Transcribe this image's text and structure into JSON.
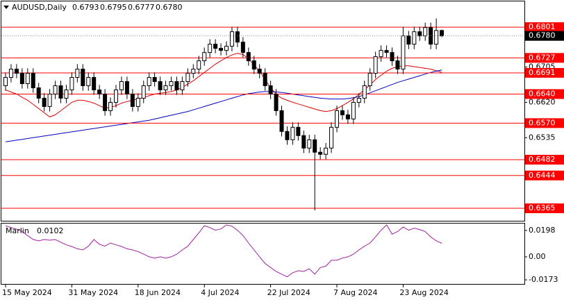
{
  "chart_data": [
    {
      "type": "candlestick",
      "symbol": "AUDUSD,Daily",
      "categories": [
        "15 May 2024",
        null,
        null,
        null,
        null,
        null,
        null,
        null,
        null,
        null,
        null,
        null,
        "31 May 2024",
        null,
        null,
        null,
        null,
        null,
        null,
        null,
        null,
        null,
        null,
        null,
        "18 Jun 2024",
        null,
        null,
        null,
        null,
        null,
        null,
        null,
        null,
        null,
        null,
        null,
        "4 Jul 2024",
        null,
        null,
        null,
        null,
        null,
        null,
        null,
        null,
        null,
        null,
        null,
        "22 Jul 2024",
        null,
        null,
        null,
        null,
        null,
        null,
        null,
        null,
        null,
        null,
        null,
        "7 Aug 2024",
        null,
        null,
        null,
        null,
        null,
        null,
        null,
        null,
        null,
        null,
        null,
        "23 Aug 2024",
        null,
        null,
        null,
        null,
        null,
        null,
        null
      ],
      "candles": [
        [
          0.666,
          0.6692,
          0.6648,
          0.668
        ],
        [
          0.668,
          0.6712,
          0.6668,
          0.67
        ],
        [
          0.67,
          0.6712,
          0.6678,
          0.669
        ],
        [
          0.669,
          0.6702,
          0.6653,
          0.6665
        ],
        [
          0.6665,
          0.6702,
          0.6653,
          0.669
        ],
        [
          0.669,
          0.6702,
          0.6643,
          0.6655
        ],
        [
          0.6655,
          0.6667,
          0.6618,
          0.663
        ],
        [
          0.663,
          0.6642,
          0.6598,
          0.661
        ],
        [
          0.661,
          0.6652,
          0.6598,
          0.664
        ],
        [
          0.664,
          0.6672,
          0.6628,
          0.666
        ],
        [
          0.666,
          0.6672,
          0.6618,
          0.663
        ],
        [
          0.663,
          0.6662,
          0.6618,
          0.665
        ],
        [
          0.665,
          0.6692,
          0.6638,
          0.668
        ],
        [
          0.668,
          0.6712,
          0.6668,
          0.67
        ],
        [
          0.67,
          0.6712,
          0.6648,
          0.666
        ],
        [
          0.666,
          0.6692,
          0.6648,
          0.668
        ],
        [
          0.668,
          0.6692,
          0.6638,
          0.665
        ],
        [
          0.665,
          0.6662,
          0.6628,
          0.664
        ],
        [
          0.664,
          0.6652,
          0.6588,
          0.66
        ],
        [
          0.66,
          0.6632,
          0.6588,
          0.662
        ],
        [
          0.662,
          0.6662,
          0.6608,
          0.665
        ],
        [
          0.665,
          0.6682,
          0.6638,
          0.667
        ],
        [
          0.667,
          0.6682,
          0.6628,
          0.664
        ],
        [
          0.664,
          0.6652,
          0.6598,
          0.661
        ],
        [
          0.661,
          0.6642,
          0.6598,
          0.663
        ],
        [
          0.663,
          0.6672,
          0.6618,
          0.666
        ],
        [
          0.666,
          0.6692,
          0.6648,
          0.668
        ],
        [
          0.668,
          0.6692,
          0.6658,
          0.667
        ],
        [
          0.667,
          0.6682,
          0.6638,
          0.665
        ],
        [
          0.665,
          0.6672,
          0.6638,
          0.666
        ],
        [
          0.666,
          0.6682,
          0.6648,
          0.667
        ],
        [
          0.667,
          0.6682,
          0.6638,
          0.665
        ],
        [
          0.665,
          0.6682,
          0.6638,
          0.667
        ],
        [
          0.667,
          0.6702,
          0.6658,
          0.669
        ],
        [
          0.669,
          0.6712,
          0.6678,
          0.67
        ],
        [
          0.67,
          0.6732,
          0.6688,
          0.672
        ],
        [
          0.672,
          0.6752,
          0.6708,
          0.674
        ],
        [
          0.674,
          0.6772,
          0.6728,
          0.676
        ],
        [
          0.676,
          0.6772,
          0.6738,
          0.675
        ],
        [
          0.675,
          0.6762,
          0.6733,
          0.6745
        ],
        [
          0.6745,
          0.6767,
          0.6733,
          0.6755
        ],
        [
          0.6755,
          0.6802,
          0.6743,
          0.679
        ],
        [
          0.679,
          0.6802,
          0.6753,
          0.6765
        ],
        [
          0.6765,
          0.6777,
          0.6728,
          0.674
        ],
        [
          0.674,
          0.6752,
          0.6708,
          0.672
        ],
        [
          0.672,
          0.6732,
          0.6688,
          0.67
        ],
        [
          0.67,
          0.6712,
          0.6678,
          0.669
        ],
        [
          0.669,
          0.6702,
          0.6648,
          0.666
        ],
        [
          0.666,
          0.6672,
          0.6628,
          0.664
        ],
        [
          0.664,
          0.6652,
          0.6588,
          0.66
        ],
        [
          0.66,
          0.6612,
          0.6538,
          0.655
        ],
        [
          0.655,
          0.6562,
          0.6518,
          0.653
        ],
        [
          0.653,
          0.6572,
          0.6518,
          0.656
        ],
        [
          0.656,
          0.6572,
          0.6528,
          0.654
        ],
        [
          0.654,
          0.6552,
          0.6498,
          0.651
        ],
        [
          0.651,
          0.6542,
          0.6498,
          0.653
        ],
        [
          0.653,
          0.6542,
          0.636,
          0.65
        ],
        [
          0.65,
          0.6512,
          0.6483,
          0.6495
        ],
        [
          0.6495,
          0.6522,
          0.6483,
          0.651
        ],
        [
          0.651,
          0.6572,
          0.6498,
          0.656
        ],
        [
          0.656,
          0.6612,
          0.6548,
          0.66
        ],
        [
          0.66,
          0.6612,
          0.6578,
          0.659
        ],
        [
          0.659,
          0.6602,
          0.6568,
          0.658
        ],
        [
          0.658,
          0.6632,
          0.6568,
          0.662
        ],
        [
          0.662,
          0.6642,
          0.6608,
          0.663
        ],
        [
          0.663,
          0.6672,
          0.6618,
          0.666
        ],
        [
          0.666,
          0.6702,
          0.6648,
          0.669
        ],
        [
          0.669,
          0.6742,
          0.6678,
          0.673
        ],
        [
          0.673,
          0.6757,
          0.6718,
          0.6745
        ],
        [
          0.6745,
          0.6757,
          0.6728,
          0.674
        ],
        [
          0.674,
          0.6752,
          0.6708,
          0.672
        ],
        [
          0.672,
          0.6732,
          0.6688,
          0.67
        ],
        [
          0.67,
          0.6802,
          0.6688,
          0.678
        ],
        [
          0.678,
          0.6792,
          0.6748,
          0.676
        ],
        [
          0.676,
          0.6802,
          0.6748,
          0.679
        ],
        [
          0.679,
          0.6802,
          0.6768,
          0.678
        ],
        [
          0.678,
          0.6812,
          0.6768,
          0.68
        ],
        [
          0.68,
          0.6812,
          0.6748,
          0.676
        ],
        [
          0.676,
          0.6822,
          0.6748,
          0.6793
        ],
        [
          0.6793,
          0.6795,
          0.6777,
          0.678
        ]
      ],
      "price_label": {
        "value": 0.678,
        "label": "0.6780"
      },
      "lines": [
        {
          "color": "#e00000",
          "values": [
            0.665,
            0.6645,
            0.664,
            0.6632,
            0.6625,
            0.6615,
            0.6605,
            0.6595,
            0.6585,
            0.659,
            0.66,
            0.661,
            0.662,
            0.6625,
            0.6625,
            0.6622,
            0.6618,
            0.6612,
            0.6606,
            0.6608,
            0.6612,
            0.6618,
            0.6622,
            0.6625,
            0.6628,
            0.6632,
            0.6636,
            0.664,
            0.6642,
            0.6644,
            0.6646,
            0.665,
            0.6656,
            0.6664,
            0.6672,
            0.6682,
            0.6692,
            0.6702,
            0.6712,
            0.672,
            0.6728,
            0.6734,
            0.6738,
            0.6735,
            0.6725,
            0.671,
            0.6695,
            0.6675,
            0.6655,
            0.664,
            0.663,
            0.6625,
            0.662,
            0.6616,
            0.6612,
            0.6608,
            0.6604,
            0.66,
            0.6598,
            0.66,
            0.6605,
            0.6612,
            0.662,
            0.6628,
            0.664,
            0.665,
            0.6662,
            0.6675,
            0.6685,
            0.6695,
            0.6702,
            0.6706,
            0.6708,
            0.6708,
            0.6706,
            0.6704,
            0.6702,
            0.67,
            0.6696,
            0.6692
          ]
        },
        {
          "color": "#0000c0",
          "values": [
            0.6525,
            0.6527,
            0.6529,
            0.6531,
            0.6533,
            0.6535,
            0.6537,
            0.6539,
            0.6541,
            0.6543,
            0.6545,
            0.6547,
            0.6549,
            0.6551,
            0.6553,
            0.6555,
            0.6557,
            0.6559,
            0.6561,
            0.6563,
            0.6565,
            0.6567,
            0.6569,
            0.6571,
            0.6573,
            0.6575,
            0.6577,
            0.658,
            0.6583,
            0.6586,
            0.6589,
            0.6592,
            0.6595,
            0.6598,
            0.6602,
            0.6606,
            0.661,
            0.6614,
            0.6618,
            0.6622,
            0.6626,
            0.663,
            0.6634,
            0.6638,
            0.6641,
            0.6643,
            0.6645,
            0.6646,
            0.6646,
            0.6645,
            0.6644,
            0.6642,
            0.664,
            0.6638,
            0.6636,
            0.6634,
            0.6632,
            0.663,
            0.6629,
            0.6628,
            0.6628,
            0.6628,
            0.6629,
            0.6631,
            0.6634,
            0.6638,
            0.6643,
            0.6648,
            0.6653,
            0.6658,
            0.6663,
            0.6668,
            0.6672,
            0.6676,
            0.668,
            0.6684,
            0.6688,
            0.6692,
            0.6695,
            0.6698
          ]
        }
      ],
      "levels": [
        0.6801,
        0.6727,
        0.6691,
        {
          "value": 0.664,
          "label": "0.6640"
        },
        {
          "value": 0.657,
          "label": "0.6570"
        },
        0.6482,
        0.6444,
        0.6365
      ],
      "level_color": "#ff0000",
      "ylim": [
        0.6335,
        0.6863
      ],
      "yticks": [
        0.6705,
        {
          "value": 0.662,
          "label": "0.6620"
        },
        0.6535
      ]
    },
    {
      "type": "line",
      "name": "Marlin",
      "color": "#a020a0",
      "values": [
        0.0234,
        0.022,
        0.0208,
        0.019,
        0.016,
        0.013,
        0.012,
        0.013,
        0.0125,
        0.013,
        0.011,
        0.009,
        0.0078,
        0.006,
        0.0052,
        0.008,
        0.013,
        0.0094,
        0.008,
        0.0104,
        0.009,
        0.0078,
        0.006,
        0.0052,
        0.004,
        0.002,
        0.0,
        -0.001,
        0.0,
        -0.001,
        0.0,
        0.002,
        0.0052,
        0.008,
        0.013,
        0.018,
        0.0234,
        0.022,
        0.02,
        0.021,
        0.024,
        0.023,
        0.02,
        0.016,
        0.0104,
        0.0052,
        0.0,
        -0.005,
        -0.008,
        -0.011,
        -0.013,
        -0.015,
        -0.012,
        -0.0104,
        -0.011,
        -0.009,
        -0.013,
        -0.008,
        -0.007,
        -0.0026,
        -0.0026,
        -0.001,
        0.0,
        0.002,
        0.0052,
        0.008,
        0.0104,
        0.015,
        0.02,
        0.024,
        0.017,
        0.019,
        0.0224,
        0.02,
        0.0215,
        0.0205,
        0.019,
        0.015,
        0.012,
        0.0102
      ],
      "ylim": [
        -0.0209,
        0.025
      ],
      "yticks": [
        0.0198,
        {
          "value": 0,
          "label": "0.00"
        },
        -0.0173
      ]
    }
  ]
}
